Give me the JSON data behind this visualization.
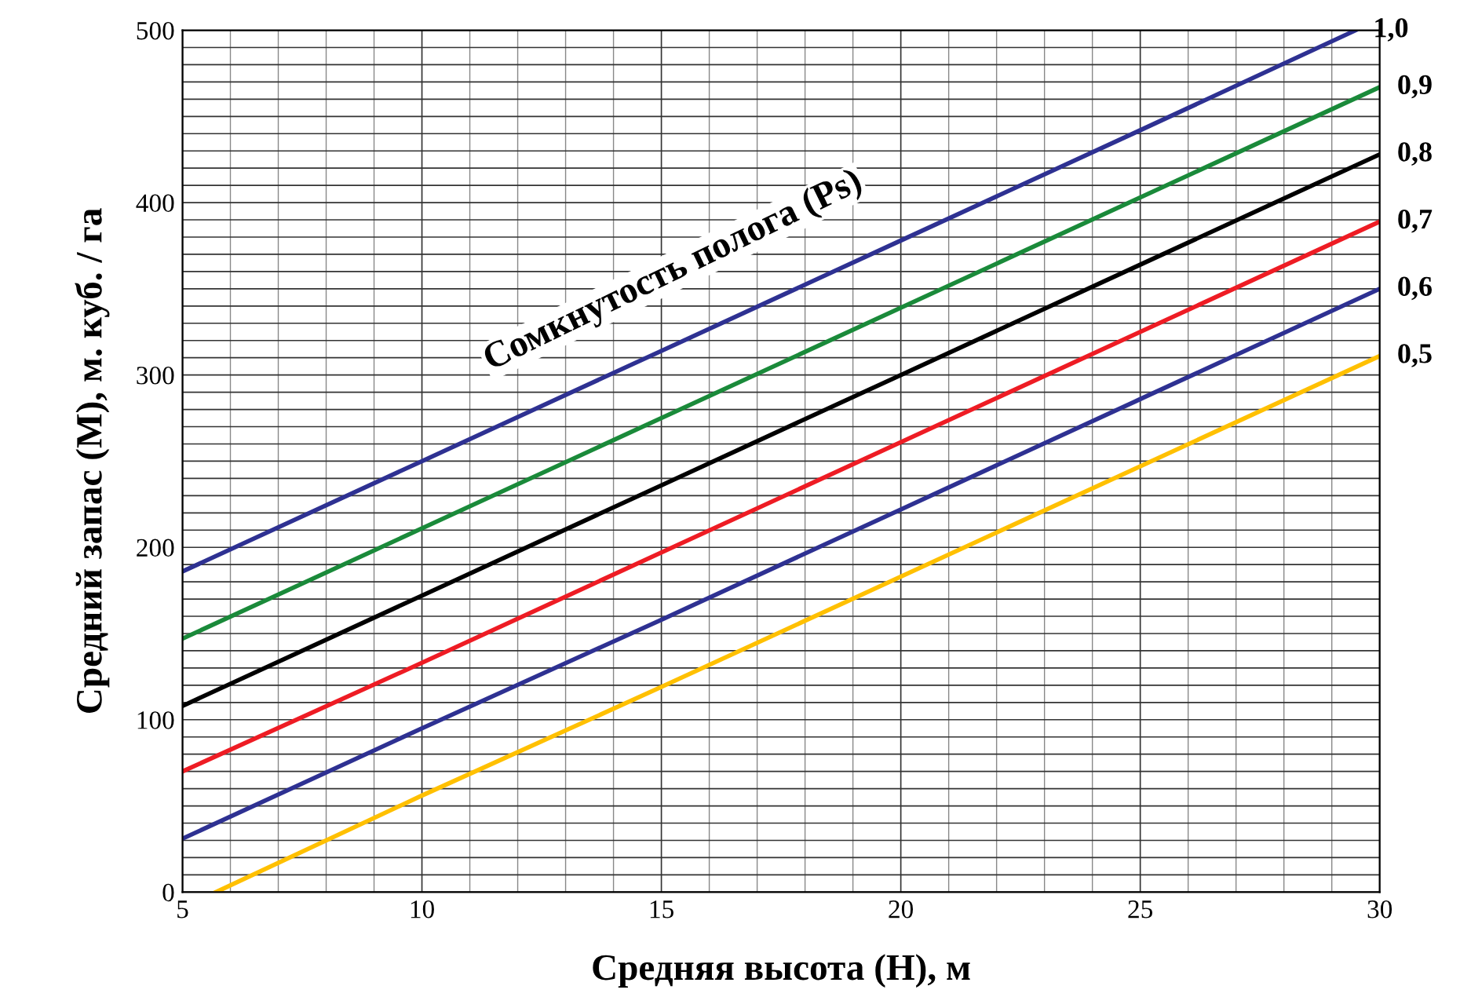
{
  "chart_data": {
    "type": "line",
    "xlabel": "Средняя высота (H), м",
    "ylabel": "Средний запас (M), м. куб. / га",
    "annotations": [
      "Сомкнутость полога (Ps)"
    ],
    "xlim": [
      5,
      30
    ],
    "ylim": [
      0,
      500
    ],
    "xticks": [
      5,
      10,
      15,
      20,
      25,
      30
    ],
    "yticks": [
      0,
      100,
      200,
      300,
      400,
      500
    ],
    "grid": true,
    "marker": "none",
    "line_style": "solid",
    "series": [
      {
        "name": "1,0",
        "color": "#2e3192",
        "x": [
          5,
          10,
          15,
          20,
          25,
          29.5
        ],
        "values": [
          186,
          250,
          314,
          378,
          442,
          500
        ]
      },
      {
        "name": "0,9",
        "color": "#1a8a3a",
        "x": [
          5,
          10,
          15,
          20,
          25,
          30
        ],
        "values": [
          147,
          211,
          275,
          339,
          403,
          467
        ]
      },
      {
        "name": "0,8",
        "color": "#000000",
        "x": [
          5,
          10,
          15,
          20,
          25,
          30
        ],
        "values": [
          108,
          172,
          236,
          300,
          364,
          428
        ]
      },
      {
        "name": "0,7",
        "color": "#ee1c24",
        "x": [
          5,
          10,
          15,
          20,
          25,
          30
        ],
        "values": [
          70,
          133,
          197,
          261,
          325,
          389
        ]
      },
      {
        "name": "0,6",
        "color": "#2e3192",
        "x": [
          5,
          10,
          15,
          20,
          25,
          30
        ],
        "values": [
          31,
          95,
          158,
          222,
          286,
          350
        ]
      },
      {
        "name": "0,5",
        "color": "#ffc000",
        "x": [
          5.7,
          10,
          15,
          20,
          25,
          30
        ],
        "values": [
          0,
          56,
          119,
          183,
          247,
          311
        ]
      }
    ]
  }
}
